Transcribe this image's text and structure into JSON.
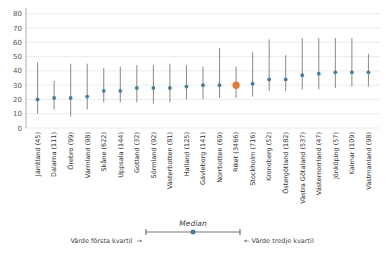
{
  "chart_data": {
    "type": "range",
    "categories": [
      "Jämtland (45)",
      "Dalarna (111)",
      "Örebro (99)",
      "Värmland (98)",
      "Skåne (622)",
      "Uppsala (144)",
      "Gotland (32)",
      "Sörmland (92)",
      "Västerbotten (81)",
      "Halland (125)",
      "Gävleborg (141)",
      "Norrbotten (69)",
      "Riket (3466)",
      "Stockholm (716)",
      "Kronoberg (52)",
      "Östergötland (182)",
      "Västra Götaland (537)",
      "Västernorrland (47)",
      "Jönköping (57)",
      "Kalmar (109)",
      "Västmanland (98)"
    ],
    "series": [
      {
        "name": "Median",
        "color": "#4a7c99",
        "values": [
          20,
          21,
          21,
          22,
          26,
          26,
          28,
          28,
          28,
          29,
          30,
          30,
          30,
          31,
          34,
          34,
          37,
          38,
          39,
          39,
          39
        ],
        "colors": [
          "#4a7c99",
          "#4a7c99",
          "#4a7c99",
          "#4a7c99",
          "#4a7c99",
          "#4a7c99",
          "#4a7c99",
          "#4a7c99",
          "#4a7c99",
          "#4a7c99",
          "#4a7c99",
          "#4a7c99",
          "#e07b39",
          "#4a7c99",
          "#4a7c99",
          "#4a7c99",
          "#4a7c99",
          "#4a7c99",
          "#4a7c99",
          "#4a7c99",
          "#4a7c99"
        ]
      },
      {
        "name": "Värde första kvartil  →",
        "color": "#888888",
        "values": [
          10,
          13,
          8,
          13,
          18,
          18,
          18,
          17,
          18,
          20,
          20,
          21,
          21,
          22,
          26,
          26,
          27,
          27,
          28,
          29,
          29
        ]
      },
      {
        "name": "← Värde tredje kvartil",
        "color": "#888888",
        "values": [
          46,
          33,
          45,
          45,
          42,
          43,
          44,
          44,
          45,
          44,
          43,
          56,
          43,
          53,
          62,
          51,
          63,
          63,
          63,
          63,
          52
        ]
      }
    ],
    "ylim": [
      0,
      84
    ],
    "yticks": [
      0,
      10,
      20,
      30,
      40,
      50,
      60,
      70,
      80
    ],
    "grid": true
  }
}
